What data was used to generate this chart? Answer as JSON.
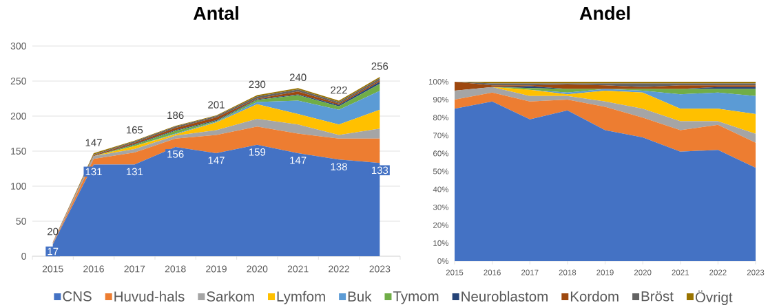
{
  "chart_data": [
    {
      "type": "area",
      "title": "Antal",
      "stacked": true,
      "categories": [
        "2015",
        "2016",
        "2017",
        "2018",
        "2019",
        "2020",
        "2021",
        "2022",
        "2023"
      ],
      "series": [
        {
          "name": "CNS",
          "color": "#4472c4",
          "values": [
            17,
            131,
            131,
            156,
            147,
            159,
            147,
            138,
            133
          ],
          "value_labels": [
            "17",
            "131",
            "131",
            "156",
            "147",
            "159",
            "147",
            "138",
            "133"
          ]
        },
        {
          "name": "Huvud-hals",
          "color": "#ed7d31",
          "values": [
            1,
            8,
            17,
            12,
            26,
            26,
            28,
            30,
            35
          ]
        },
        {
          "name": "Sarkom",
          "color": "#a5a5a5",
          "values": [
            1,
            4,
            5,
            4,
            7,
            11,
            13,
            5,
            14
          ]
        },
        {
          "name": "Lymfom",
          "color": "#ffc000",
          "values": [
            0,
            0,
            4,
            2,
            11,
            21,
            15,
            15,
            27
          ]
        },
        {
          "name": "Buk",
          "color": "#5b9bd5",
          "values": [
            0,
            0,
            0,
            1,
            1,
            3,
            19,
            21,
            27
          ]
        },
        {
          "name": "Tymom",
          "color": "#70ad47",
          "values": [
            0,
            0,
            2,
            4,
            1,
            3,
            8,
            5,
            10
          ]
        },
        {
          "name": "Neuroblastom",
          "color": "#264478",
          "values": [
            0,
            0,
            1,
            1,
            1,
            1,
            1,
            2,
            3
          ]
        },
        {
          "name": "Kordom",
          "color": "#9e480e",
          "values": [
            1,
            1,
            2,
            3,
            4,
            1,
            4,
            2,
            2
          ]
        },
        {
          "name": "Bröst",
          "color": "#636363",
          "values": [
            0,
            1,
            2,
            2,
            2,
            3,
            3,
            2,
            3
          ]
        },
        {
          "name": "Övrigt",
          "color": "#997300",
          "values": [
            0,
            2,
            1,
            1,
            1,
            2,
            2,
            2,
            2
          ]
        }
      ],
      "totals": [
        "20",
        "147",
        "165",
        "186",
        "201",
        "230",
        "240",
        "222",
        "256"
      ],
      "ylim": [
        0,
        300
      ],
      "yticks": [
        0,
        50,
        100,
        150,
        200,
        250,
        300
      ],
      "grid": "y",
      "legend": "bottom"
    },
    {
      "type": "area",
      "title": "Andel",
      "stacked": true,
      "categories": [
        "2015",
        "2016",
        "2017",
        "2018",
        "2019",
        "2020",
        "2021",
        "2022",
        "2023"
      ],
      "series": [
        {
          "color": "#4472c4",
          "values": [
            85,
            89,
            79,
            84,
            73,
            69,
            61,
            62,
            52
          ]
        },
        {
          "color": "#ed7d31",
          "values": [
            5,
            5,
            10,
            6,
            13,
            11,
            12,
            14,
            14
          ]
        },
        {
          "color": "#a5a5a5",
          "values": [
            5,
            3,
            3,
            2,
            3,
            5,
            5,
            2,
            5
          ]
        },
        {
          "color": "#ffc000",
          "values": [
            0,
            0,
            3.5,
            1,
            6,
            9,
            7,
            7,
            11
          ]
        },
        {
          "color": "#5b9bd5",
          "values": [
            0,
            0,
            0,
            1,
            1,
            1,
            8,
            9,
            10
          ]
        },
        {
          "color": "#70ad47",
          "values": [
            0,
            0,
            1,
            2,
            0,
            1,
            3,
            2,
            4
          ]
        },
        {
          "color": "#264478",
          "values": [
            0,
            0,
            1,
            0,
            0,
            0,
            0,
            1,
            1
          ]
        },
        {
          "color": "#9e480e",
          "values": [
            5,
            1,
            0.5,
            2.5,
            2,
            1,
            2,
            1,
            1
          ]
        },
        {
          "color": "#636363",
          "values": [
            0,
            1,
            1,
            0.5,
            1,
            2,
            1,
            1,
            1
          ]
        },
        {
          "color": "#997300",
          "values": [
            0,
            1,
            1,
            1,
            1,
            1,
            1,
            1,
            1
          ]
        }
      ],
      "ylim": [
        0,
        100
      ],
      "yticks": [
        {
          "value": 0,
          "label": "0%"
        },
        {
          "value": 10,
          "label": "10%"
        },
        {
          "value": 20,
          "label": "20%"
        },
        {
          "value": 30,
          "label": "30%"
        },
        {
          "value": 40,
          "label": "40%"
        },
        {
          "value": 50,
          "label": "50%"
        },
        {
          "value": 60,
          "label": "60%"
        },
        {
          "value": 70,
          "label": "70%"
        },
        {
          "value": 80,
          "label": "80%"
        },
        {
          "value": 90,
          "label": "90%"
        },
        {
          "value": 100,
          "label": "100%"
        }
      ]
    }
  ]
}
